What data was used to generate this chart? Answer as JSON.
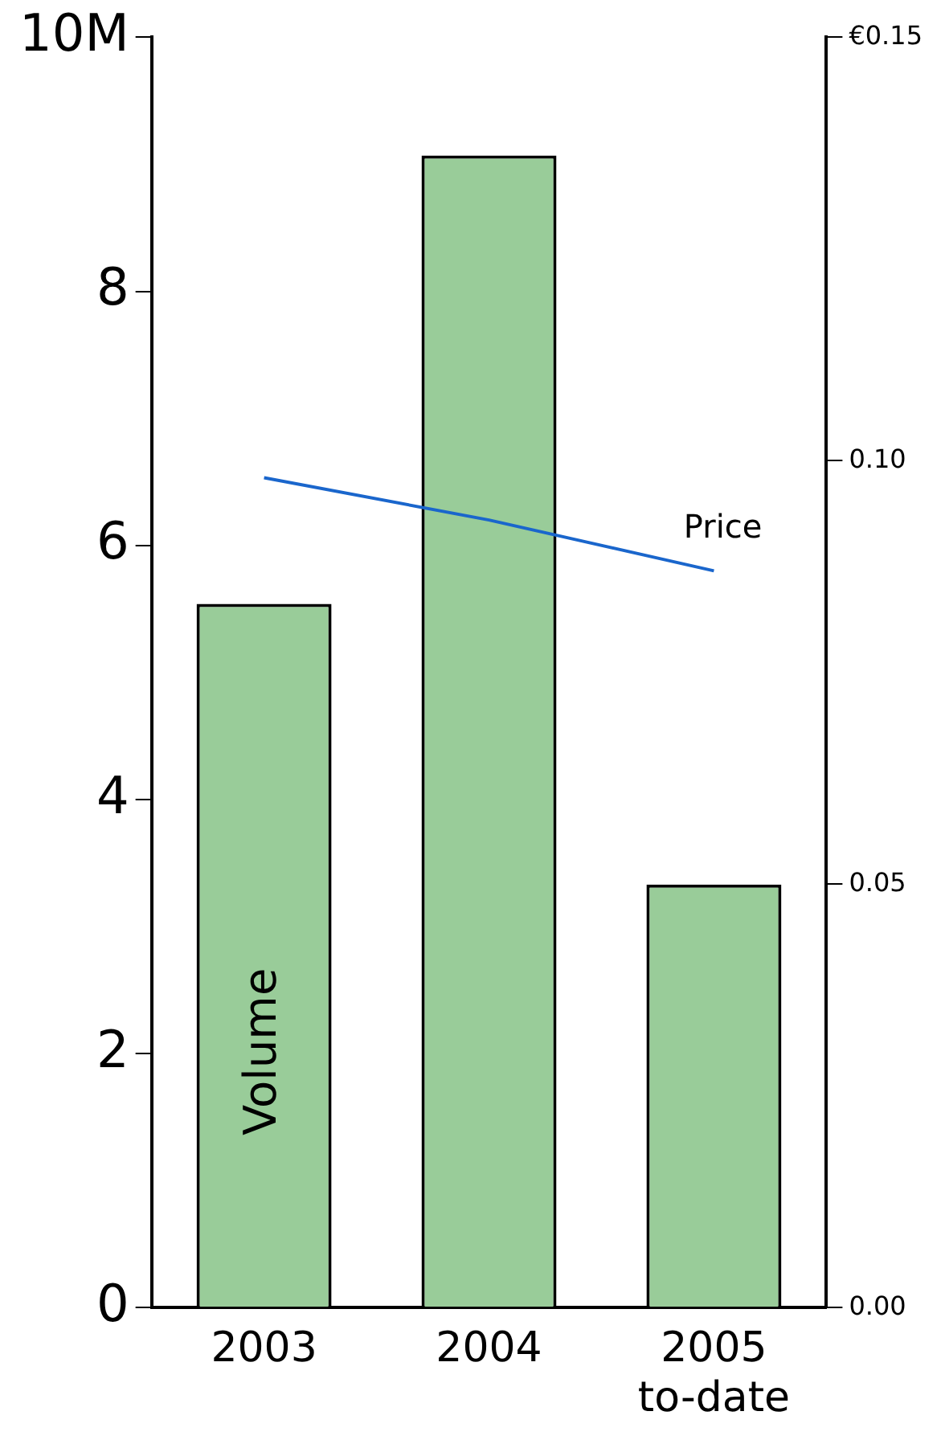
{
  "chart_data": {
    "type": "bar",
    "categories": [
      "2003",
      "2004",
      "2005\nto-date"
    ],
    "series": [
      {
        "name": "Volume",
        "color": "#99cc99",
        "values": [
          5.54,
          9.07,
          3.33
        ]
      },
      {
        "name": "Price",
        "type": "line",
        "axis": "y2",
        "color": "#1a66cc",
        "values": [
          0.098,
          0.093,
          0.087
        ]
      }
    ],
    "ylim": [
      0,
      10
    ],
    "yticks": [
      0,
      2,
      4,
      6,
      8,
      {
        "value": 10,
        "label": "10M"
      }
    ],
    "y2lim": [
      0,
      0.15
    ],
    "y2ticks": [
      {
        "value": 0,
        "label": "0.00"
      },
      {
        "value": 0.05,
        "label": "0.05"
      },
      {
        "value": 0.1,
        "label": "0.10"
      },
      {
        "value": 0.15,
        "label": "€0.15"
      }
    ]
  }
}
